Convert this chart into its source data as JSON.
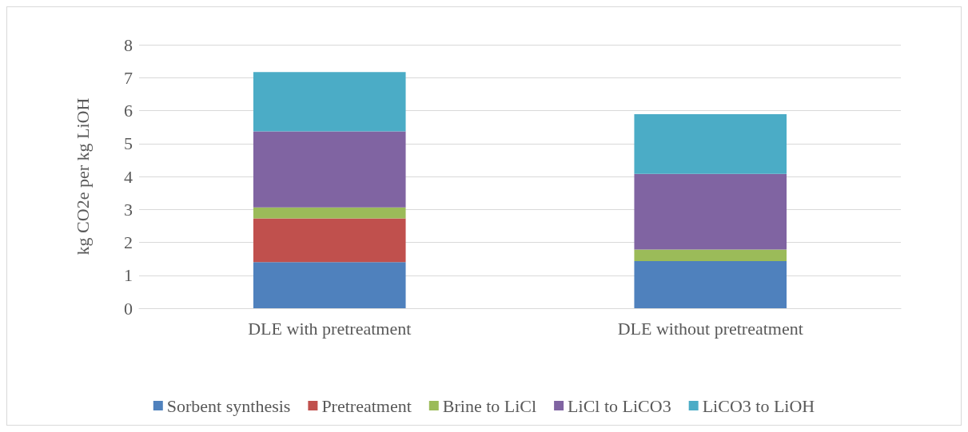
{
  "chart_data": {
    "type": "bar",
    "stacked": true,
    "ylabel": "kg CO2e per kg LiOH",
    "categories": [
      "DLE with pretreatment",
      "DLE without pretreatment"
    ],
    "series": [
      {
        "name": "Sorbent synthesis",
        "color": "#4f81bd",
        "values": [
          1.4,
          1.43
        ]
      },
      {
        "name": "Pretreatment",
        "color": "#c0504d",
        "values": [
          1.33,
          0
        ]
      },
      {
        "name": "Brine to LiCl",
        "color": "#9bbb59",
        "values": [
          0.33,
          0.35
        ]
      },
      {
        "name": "LiCl to LiCO3",
        "color": "#8064a2",
        "values": [
          2.31,
          2.3
        ]
      },
      {
        "name": "LiCO3 to LiOH",
        "color": "#4bacc6",
        "values": [
          1.8,
          1.81
        ]
      }
    ],
    "ylim": [
      0,
      8
    ],
    "yticks": [
      0,
      1,
      2,
      3,
      4,
      5,
      6,
      7,
      8
    ],
    "grid": "y",
    "legend": "bottom"
  }
}
